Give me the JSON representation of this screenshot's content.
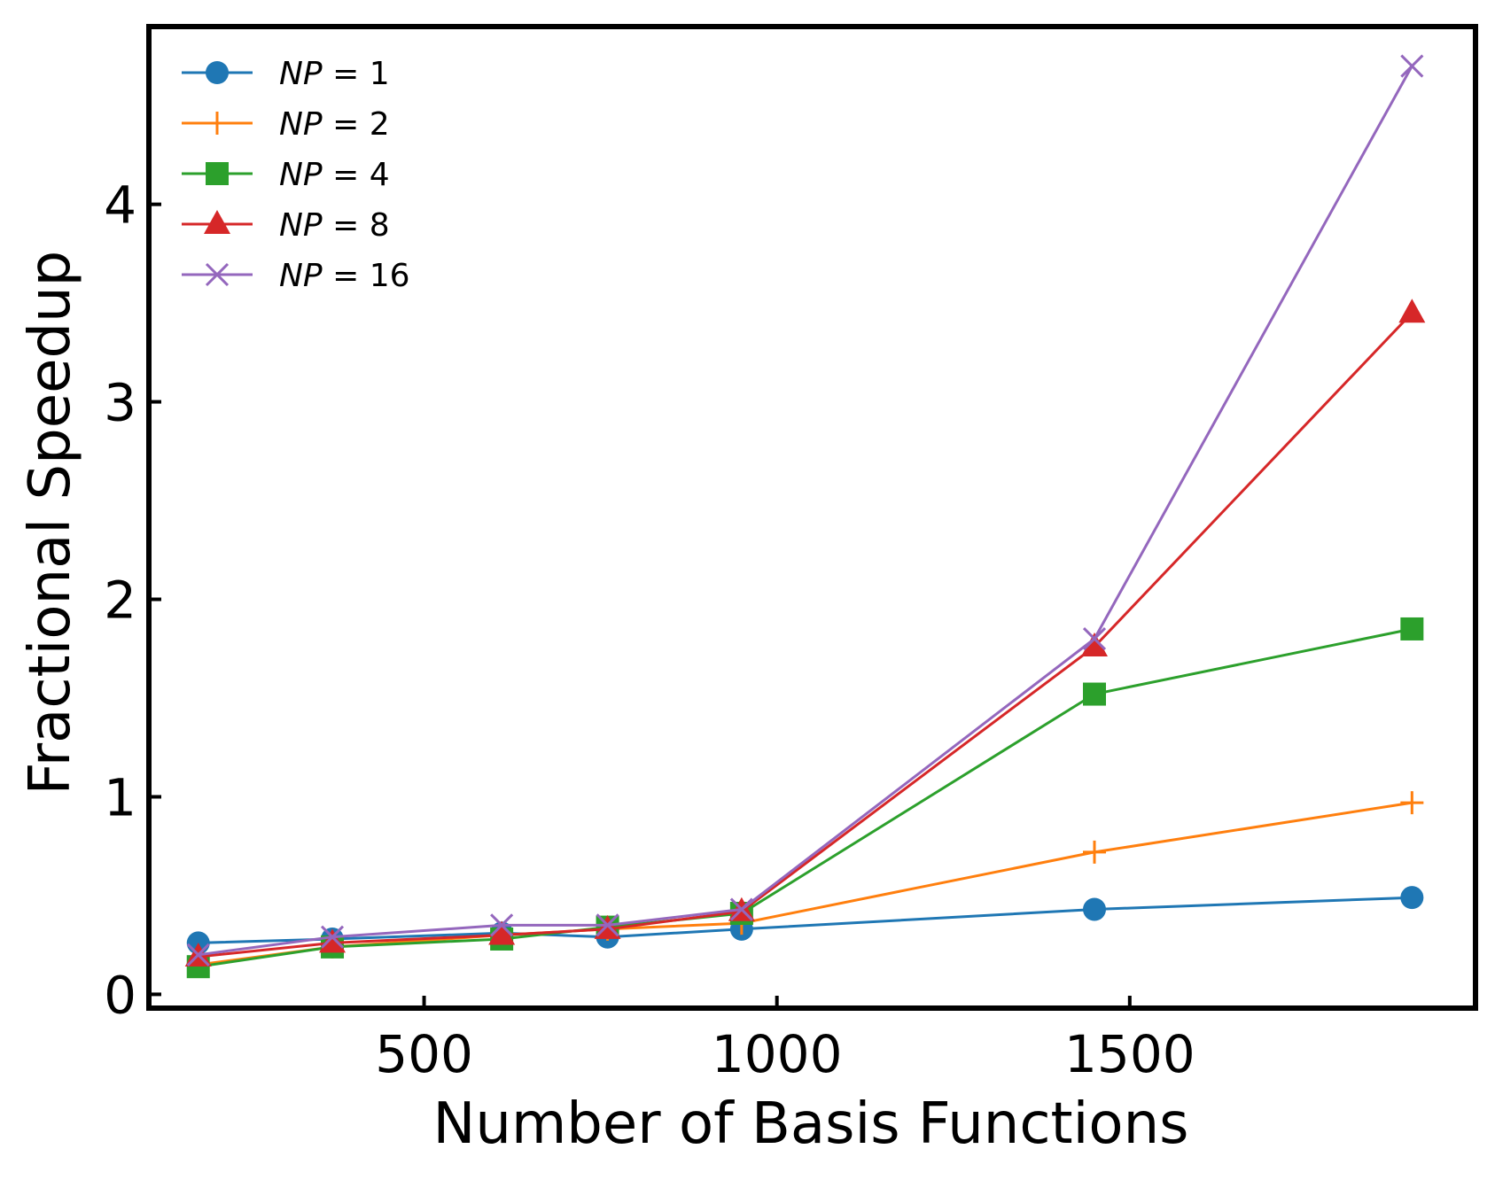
{
  "chart_data": {
    "type": "line",
    "xlabel": "Number of Basis Functions",
    "ylabel": "Fractional Speedup",
    "xlim": [
      110,
      1990
    ],
    "ylim": [
      -0.07,
      4.9
    ],
    "xticks": [
      500,
      1000,
      1500
    ],
    "yticks": [
      0,
      1,
      2,
      3,
      4
    ],
    "grid": false,
    "legend_position": "top-left",
    "x": [
      180,
      370,
      610,
      760,
      950,
      1450,
      1900
    ],
    "series": [
      {
        "name": "NP = 1",
        "label_main": "NP",
        "label_value": "1",
        "color": "#1f77b4",
        "marker": "circle",
        "values": [
          0.26,
          0.28,
          0.31,
          0.29,
          0.33,
          0.43,
          0.49
        ]
      },
      {
        "name": "NP = 2",
        "label_main": "NP",
        "label_value": "2",
        "color": "#ff7f0e",
        "marker": "plus",
        "values": [
          0.15,
          0.24,
          0.3,
          0.33,
          0.36,
          0.72,
          0.97
        ]
      },
      {
        "name": "NP = 4",
        "label_main": "NP",
        "label_value": "4",
        "color": "#2ca02c",
        "marker": "square",
        "values": [
          0.14,
          0.24,
          0.28,
          0.34,
          0.41,
          1.52,
          1.85
        ]
      },
      {
        "name": "NP = 8",
        "label_main": "NP",
        "label_value": "8",
        "color": "#d62728",
        "marker": "triangle",
        "values": [
          0.19,
          0.26,
          0.3,
          0.33,
          0.42,
          1.76,
          3.45
        ]
      },
      {
        "name": "NP = 16",
        "label_main": "NP",
        "label_value": "16",
        "color": "#9467bd",
        "marker": "x",
        "values": [
          0.2,
          0.29,
          0.35,
          0.35,
          0.43,
          1.8,
          4.7
        ]
      }
    ]
  }
}
